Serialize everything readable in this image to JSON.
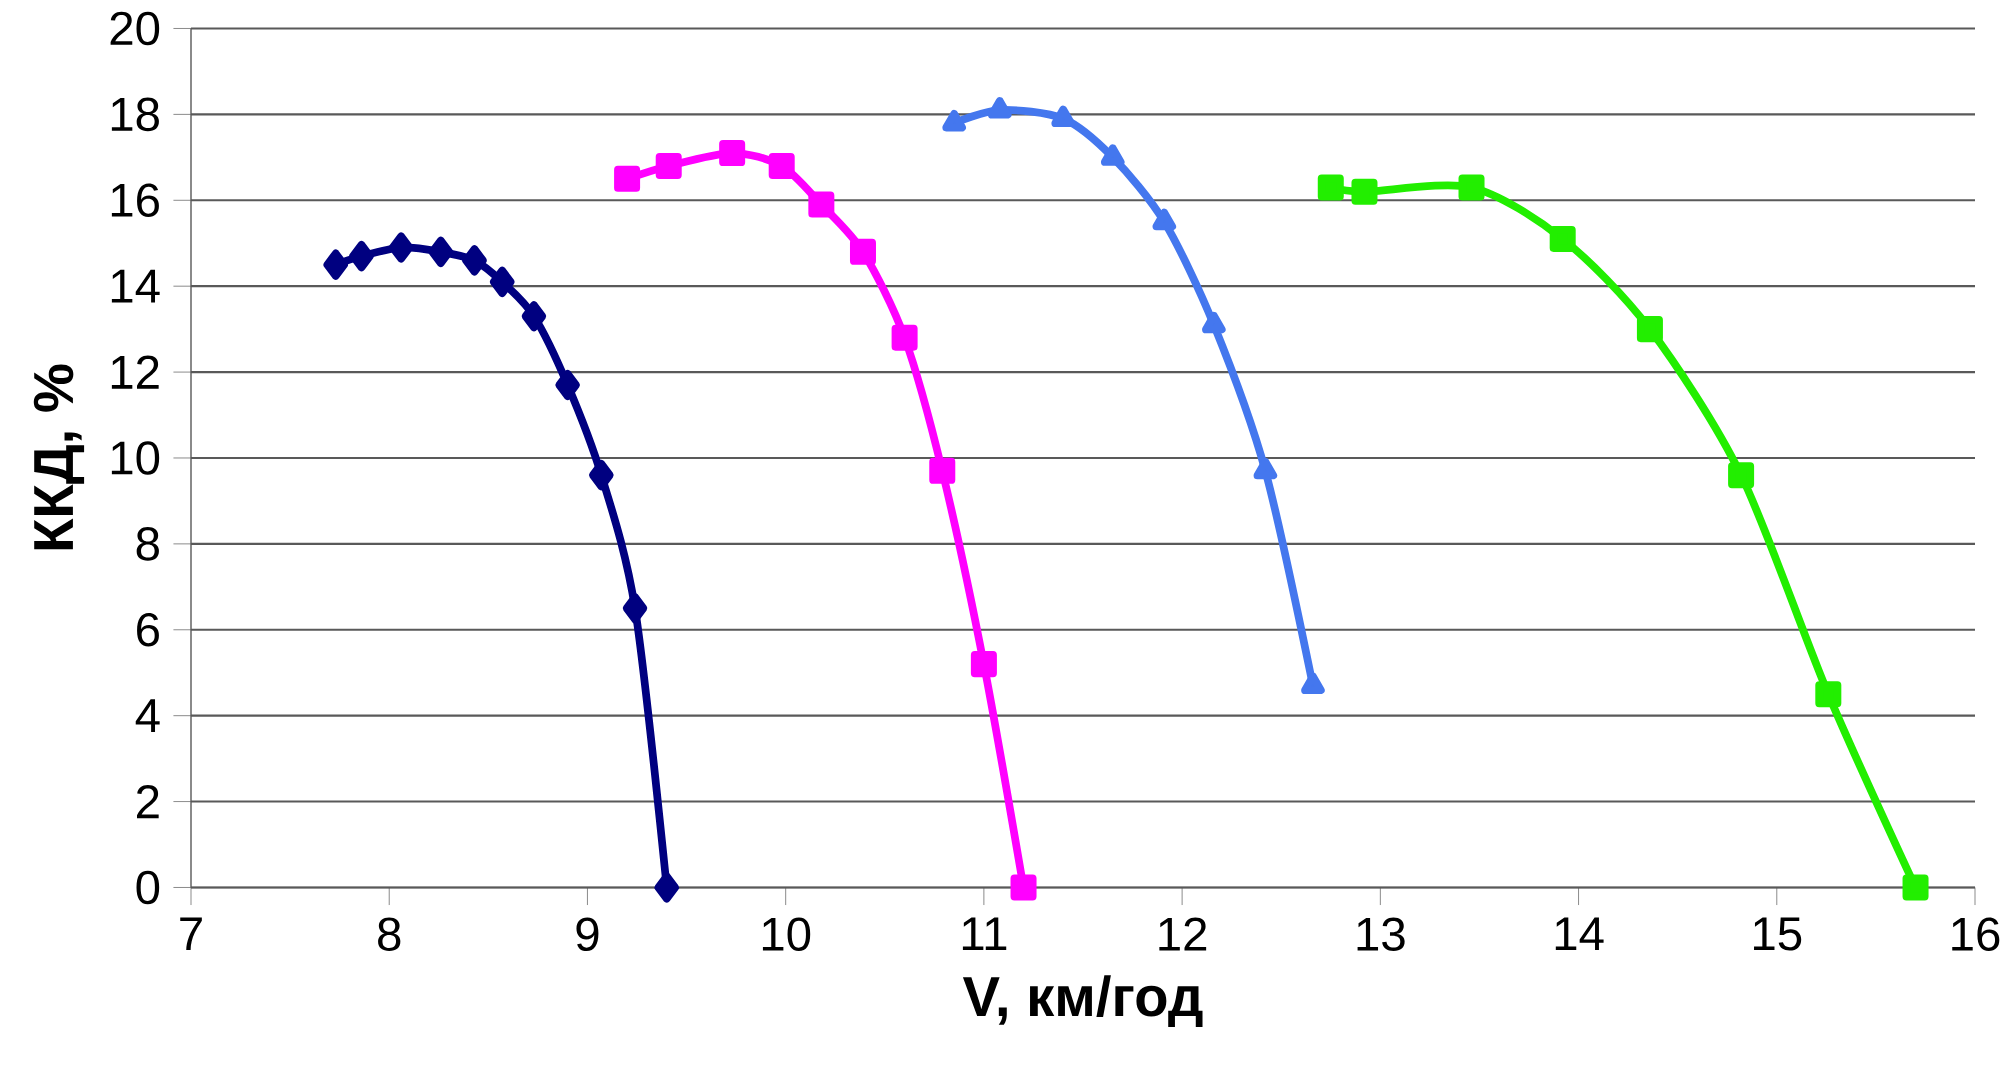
{
  "chart_data": {
    "type": "line",
    "xlabel": "V, км/год",
    "ylabel": "ККД, %",
    "xlim": [
      7,
      16
    ],
    "ylim": [
      0,
      20
    ],
    "xticks": [
      7,
      8,
      9,
      10,
      11,
      12,
      13,
      14,
      15,
      16
    ],
    "yticks": [
      0,
      2,
      4,
      6,
      8,
      10,
      12,
      14,
      16,
      18,
      20
    ],
    "grid": "y",
    "line_style": "solid",
    "series": [
      {
        "color": "#000080",
        "marker": "diamond",
        "x": [
          7.73,
          7.86,
          8.06,
          8.26,
          8.43,
          8.57,
          8.73,
          8.9,
          9.07,
          9.24,
          9.4
        ],
        "values": [
          14.5,
          14.7,
          14.9,
          14.8,
          14.6,
          14.1,
          13.3,
          11.7,
          9.6,
          6.5,
          0
        ]
      },
      {
        "color": "#ff00ff",
        "marker": "square",
        "x": [
          9.2,
          9.41,
          9.73,
          9.98,
          10.18,
          10.39,
          10.6,
          10.79,
          11.0,
          11.2
        ],
        "values": [
          16.5,
          16.8,
          17.1,
          16.8,
          15.9,
          14.8,
          12.8,
          9.7,
          5.2,
          0
        ]
      },
      {
        "color": "#4477ee",
        "marker": "triangle",
        "x": [
          10.85,
          11.08,
          11.4,
          11.65,
          11.91,
          12.16,
          12.42,
          12.66
        ],
        "values": [
          17.8,
          18.1,
          17.9,
          17.0,
          15.5,
          13.1,
          9.7,
          4.7
        ]
      },
      {
        "color": "#22ee00",
        "marker": "square",
        "x": [
          12.75,
          12.92,
          13.46,
          13.92,
          14.36,
          14.82,
          15.26,
          15.7
        ],
        "values": [
          16.3,
          16.2,
          16.3,
          15.1,
          13.0,
          9.6,
          4.5,
          0
        ]
      }
    ]
  }
}
